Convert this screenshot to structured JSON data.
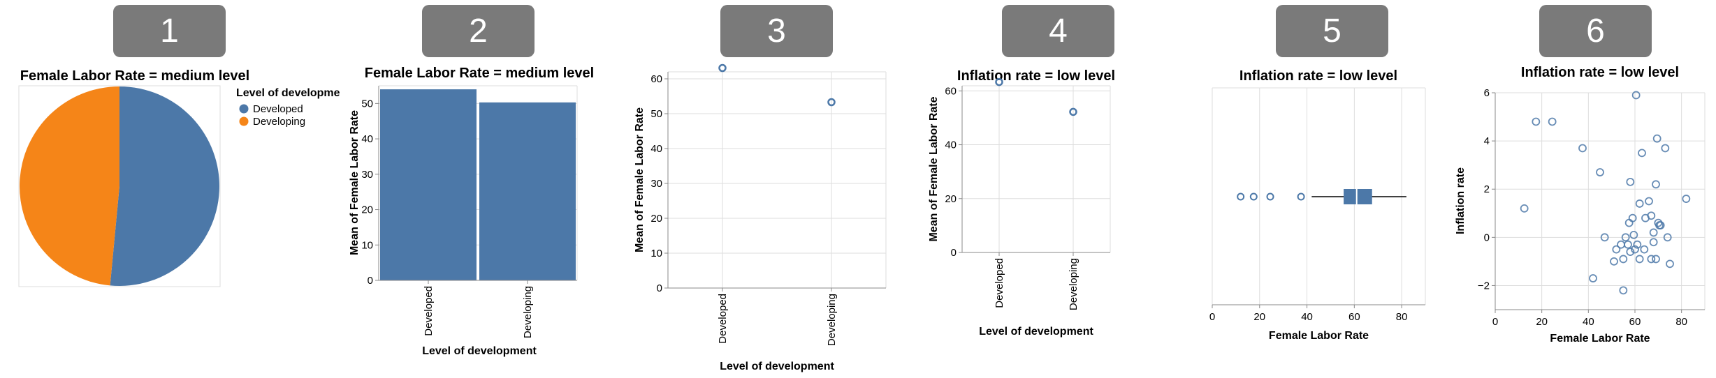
{
  "panels": [
    {
      "badge": "1"
    },
    {
      "badge": "2"
    },
    {
      "badge": "3"
    },
    {
      "badge": "4"
    },
    {
      "badge": "5"
    },
    {
      "badge": "6"
    }
  ],
  "colors": {
    "blue": "#4c78a8",
    "orange": "#f58518",
    "badge_bg": "#7a7a7a"
  },
  "chart_data": [
    {
      "type": "pie",
      "title": "Female Labor Rate = medium level",
      "legend_title": "Level of developme",
      "legend_position": "right",
      "categories": [
        "Developed",
        "Developing"
      ],
      "values": [
        51.5,
        48.5
      ],
      "colors": [
        "#4c78a8",
        "#f58518"
      ]
    },
    {
      "type": "bar",
      "title": "Female Labor Rate = medium level",
      "xlabel": "Level of development",
      "ylabel": "Mean of Female Labor Rate",
      "categories": [
        "Developed",
        "Developing"
      ],
      "values": [
        54,
        50.3
      ],
      "ylim": [
        0,
        55
      ],
      "yticks": [
        0,
        10,
        20,
        30,
        40,
        50
      ],
      "grid": true
    },
    {
      "type": "scatter",
      "title": "",
      "xlabel": "Level of development",
      "ylabel": "Mean of Female Labor Rate",
      "categories": [
        "Developed",
        "Developing"
      ],
      "values": [
        63.1,
        53.3
      ],
      "ylim": [
        0,
        65
      ],
      "yticks": [
        0,
        10,
        20,
        30,
        40,
        50,
        60
      ],
      "grid": true
    },
    {
      "type": "scatter",
      "title": "Inflation rate = low level",
      "xlabel": "Level of development",
      "ylabel": "Mean of Female Labor Rate",
      "categories": [
        "Developed",
        "Developing"
      ],
      "values": [
        63.3,
        52.2
      ],
      "ylim": [
        0,
        65
      ],
      "yticks": [
        0,
        20,
        40,
        60
      ],
      "grid": true
    },
    {
      "type": "boxplot",
      "title": "Inflation rate = low level",
      "xlabel": "Female Labor Rate",
      "xlim": [
        0,
        90
      ],
      "xticks": [
        0,
        20,
        40,
        60,
        80
      ],
      "whisker_low": 42,
      "q1": 55.5,
      "median": 61,
      "q3": 67.5,
      "whisker_high": 82,
      "outliers": [
        12,
        17.5,
        24.5,
        37.5
      ],
      "grid": true
    },
    {
      "type": "scatter",
      "title": "Inflation rate = low level",
      "xlabel": "Female Labor Rate",
      "ylabel": "Inflation rate",
      "xlim": [
        0,
        90
      ],
      "ylim": [
        -3,
        6
      ],
      "xticks": [
        0,
        20,
        40,
        60,
        80
      ],
      "yticks": [
        -2,
        0,
        2,
        4,
        6
      ],
      "grid": true,
      "points": [
        [
          12.5,
          1.2
        ],
        [
          17.5,
          4.8
        ],
        [
          24.5,
          4.8
        ],
        [
          37.5,
          3.7
        ],
        [
          42,
          -1.7
        ],
        [
          45,
          2.7
        ],
        [
          47,
          0
        ],
        [
          51,
          -1
        ],
        [
          52,
          -0.5
        ],
        [
          54,
          -0.3
        ],
        [
          55,
          -2.2
        ],
        [
          55,
          -0.9
        ],
        [
          56,
          0
        ],
        [
          57,
          -0.3
        ],
        [
          57.5,
          0.6
        ],
        [
          58,
          2.3
        ],
        [
          58,
          -0.6
        ],
        [
          59,
          0.8
        ],
        [
          59.5,
          0.1
        ],
        [
          60,
          -0.5
        ],
        [
          60.5,
          5.9
        ],
        [
          61,
          -0.3
        ],
        [
          62,
          1.4
        ],
        [
          62,
          -0.9
        ],
        [
          63,
          3.5
        ],
        [
          64,
          -0.5
        ],
        [
          64.5,
          0.8
        ],
        [
          66,
          1.5
        ],
        [
          67,
          0.9
        ],
        [
          67,
          -0.9
        ],
        [
          68,
          0.2
        ],
        [
          68,
          -0.2
        ],
        [
          69,
          2.2
        ],
        [
          69.5,
          4.1
        ],
        [
          70,
          0.6
        ],
        [
          70.5,
          0.5
        ],
        [
          71,
          0.5
        ],
        [
          69,
          -0.9
        ],
        [
          73,
          3.7
        ],
        [
          74,
          0
        ],
        [
          75,
          -1.1
        ],
        [
          82,
          1.6
        ]
      ]
    }
  ]
}
